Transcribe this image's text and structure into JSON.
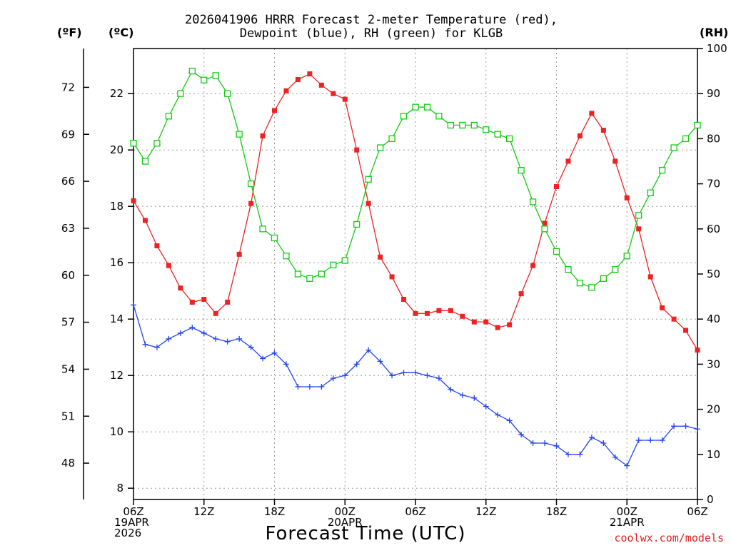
{
  "title_line1": "2026041906 HRRR Forecast 2-meter Temperature (red),",
  "title_line2": "Dewpoint (blue), RH (green) for KLGB",
  "unit_f": "(ºF)",
  "unit_c": "(ºC)",
  "unit_rh": "(RH)",
  "x_title": "Forecast Time (UTC)",
  "credit": "coolwx.com/models",
  "chart_data": {
    "type": "line",
    "title": "2026041906 HRRR Forecast 2-meter Temperature (red), Dewpoint (blue), RH (green) for KLGB",
    "xlabel": "Forecast Time (UTC)",
    "x": [
      0,
      1,
      2,
      3,
      4,
      5,
      6,
      7,
      8,
      9,
      10,
      11,
      12,
      13,
      14,
      15,
      16,
      17,
      18,
      19,
      20,
      21,
      22,
      23,
      24,
      25,
      26,
      27,
      28,
      29,
      30,
      31,
      32,
      33,
      34,
      35,
      36,
      37,
      38,
      39,
      40,
      41,
      42,
      43,
      44,
      45,
      46,
      47,
      48
    ],
    "x_ticks": [
      {
        "pos": 0,
        "lines": [
          "06Z",
          "19APR",
          "2026"
        ]
      },
      {
        "pos": 6,
        "lines": [
          "12Z"
        ]
      },
      {
        "pos": 12,
        "lines": [
          "18Z"
        ]
      },
      {
        "pos": 18,
        "lines": [
          "00Z",
          "20APR"
        ]
      },
      {
        "pos": 24,
        "lines": [
          "06Z"
        ]
      },
      {
        "pos": 30,
        "lines": [
          "12Z"
        ]
      },
      {
        "pos": 36,
        "lines": [
          "18Z"
        ]
      },
      {
        "pos": 42,
        "lines": [
          "00Z",
          "21APR"
        ]
      },
      {
        "pos": 48,
        "lines": [
          "06Z"
        ]
      }
    ],
    "xlim": [
      0,
      48
    ],
    "y_celsius": {
      "lim": [
        7.6,
        23.6
      ],
      "ticks": [
        8,
        10,
        12,
        14,
        16,
        18,
        20,
        22
      ]
    },
    "y_fahrenheit": {
      "ticks": [
        48,
        51,
        54,
        57,
        60,
        63,
        66,
        69,
        72
      ]
    },
    "y_rh": {
      "lim": [
        0,
        100
      ],
      "ticks": [
        0,
        10,
        20,
        30,
        40,
        50,
        60,
        70,
        80,
        90,
        100
      ]
    },
    "series": [
      {
        "name": "Temperature (red)",
        "axis": "celsius",
        "color": "#ee2222",
        "marker": "filled-square",
        "values": [
          18.2,
          17.5,
          16.6,
          15.9,
          15.1,
          14.6,
          14.7,
          14.2,
          14.6,
          16.3,
          18.1,
          20.5,
          21.4,
          22.1,
          22.5,
          22.7,
          22.3,
          22.0,
          21.8,
          20.0,
          18.1,
          16.2,
          15.5,
          14.7,
          14.2,
          14.2,
          14.3,
          14.3,
          14.1,
          13.9,
          13.9,
          13.7,
          13.8,
          14.9,
          15.9,
          17.4,
          18.7,
          19.6,
          20.5,
          21.3,
          20.7,
          19.6,
          18.3,
          17.2,
          15.5,
          14.4,
          14.0,
          13.6,
          12.9
        ]
      },
      {
        "name": "Dewpoint (blue)",
        "axis": "celsius",
        "color": "#2244ee",
        "marker": "plus",
        "values": [
          14.5,
          13.1,
          13.0,
          13.3,
          13.5,
          13.7,
          13.5,
          13.3,
          13.2,
          13.3,
          13.0,
          12.6,
          12.8,
          12.4,
          11.6,
          11.6,
          11.6,
          11.9,
          12.0,
          12.4,
          12.9,
          12.5,
          12.0,
          12.1,
          12.1,
          12.0,
          11.9,
          11.5,
          11.3,
          11.2,
          10.9,
          10.6,
          10.4,
          9.9,
          9.6,
          9.6,
          9.5,
          9.2,
          9.2,
          9.8,
          9.6,
          9.1,
          8.8,
          9.7,
          9.7,
          9.7,
          10.2,
          10.2,
          10.1
        ]
      },
      {
        "name": "RH (green)",
        "axis": "rh",
        "color": "#11cc11",
        "marker": "open-square",
        "values": [
          79,
          75,
          79,
          85,
          90,
          95,
          93,
          94,
          90,
          81,
          70,
          60,
          58,
          54,
          50,
          49,
          50,
          52,
          53,
          61,
          71,
          78,
          80,
          85,
          87,
          87,
          85,
          83,
          83,
          83,
          82,
          81,
          80,
          73,
          66,
          60,
          55,
          51,
          48,
          47,
          49,
          51,
          54,
          63,
          68,
          73,
          78,
          80,
          83
        ]
      }
    ]
  }
}
